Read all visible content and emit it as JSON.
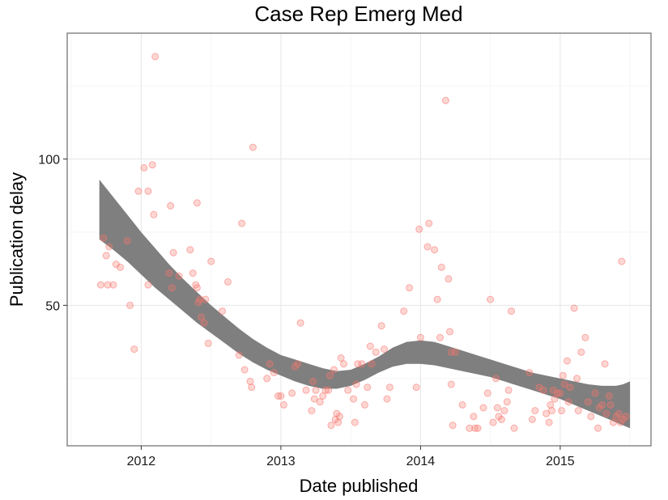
{
  "chart_data": {
    "type": "scatter",
    "title": "Case Rep Emerg Med",
    "xlabel": "Date published",
    "ylabel": "Publication delay",
    "x_ticks": [
      {
        "label": "2012",
        "value": 2012
      },
      {
        "label": "2013",
        "value": 2013
      },
      {
        "label": "2014",
        "value": 2014
      },
      {
        "label": "2015",
        "value": 2015
      }
    ],
    "y_ticks": [
      {
        "label": "50",
        "value": 50
      },
      {
        "label": "100",
        "value": 100
      }
    ],
    "xlim": [
      2011.47,
      2015.65
    ],
    "ylim": [
      2,
      143
    ],
    "grid": true,
    "point_color": "#f8766d",
    "band_color": "#7f7f7f",
    "points": [
      [
        2011.71,
        57
      ],
      [
        2011.73,
        73
      ],
      [
        2011.75,
        67
      ],
      [
        2011.76,
        57
      ],
      [
        2011.77,
        70
      ],
      [
        2011.8,
        57
      ],
      [
        2011.82,
        64
      ],
      [
        2011.85,
        63
      ],
      [
        2011.9,
        72
      ],
      [
        2011.92,
        50
      ],
      [
        2011.95,
        35
      ],
      [
        2011.98,
        89
      ],
      [
        2012.02,
        97
      ],
      [
        2012.05,
        89
      ],
      [
        2012.05,
        57
      ],
      [
        2012.08,
        98
      ],
      [
        2012.09,
        81
      ],
      [
        2012.1,
        135
      ],
      [
        2012.2,
        61
      ],
      [
        2012.21,
        84
      ],
      [
        2012.22,
        56
      ],
      [
        2012.23,
        68
      ],
      [
        2012.27,
        60
      ],
      [
        2012.35,
        69
      ],
      [
        2012.37,
        61
      ],
      [
        2012.39,
        57
      ],
      [
        2012.4,
        85
      ],
      [
        2012.4,
        56
      ],
      [
        2012.41,
        51
      ],
      [
        2012.42,
        52
      ],
      [
        2012.43,
        46
      ],
      [
        2012.45,
        44
      ],
      [
        2012.46,
        52
      ],
      [
        2012.48,
        37
      ],
      [
        2012.5,
        65
      ],
      [
        2012.58,
        48
      ],
      [
        2012.62,
        58
      ],
      [
        2012.7,
        33
      ],
      [
        2012.72,
        78
      ],
      [
        2012.74,
        28
      ],
      [
        2012.78,
        24
      ],
      [
        2012.79,
        22
      ],
      [
        2012.8,
        104
      ],
      [
        2012.9,
        25
      ],
      [
        2012.92,
        30
      ],
      [
        2012.95,
        27
      ],
      [
        2012.98,
        19
      ],
      [
        2013.0,
        19
      ],
      [
        2013.02,
        16
      ],
      [
        2013.08,
        20
      ],
      [
        2013.1,
        29
      ],
      [
        2013.12,
        30
      ],
      [
        2013.14,
        44
      ],
      [
        2013.18,
        21
      ],
      [
        2013.22,
        14
      ],
      [
        2013.23,
        24
      ],
      [
        2013.24,
        18
      ],
      [
        2013.25,
        21
      ],
      [
        2013.28,
        17
      ],
      [
        2013.3,
        19
      ],
      [
        2013.32,
        21
      ],
      [
        2013.34,
        21
      ],
      [
        2013.35,
        26
      ],
      [
        2013.36,
        9
      ],
      [
        2013.38,
        28
      ],
      [
        2013.39,
        11
      ],
      [
        2013.4,
        13
      ],
      [
        2013.41,
        10
      ],
      [
        2013.42,
        12
      ],
      [
        2013.43,
        32
      ],
      [
        2013.45,
        30
      ],
      [
        2013.48,
        21
      ],
      [
        2013.52,
        18
      ],
      [
        2013.53,
        10
      ],
      [
        2013.54,
        23
      ],
      [
        2013.55,
        30
      ],
      [
        2013.58,
        30
      ],
      [
        2013.6,
        16
      ],
      [
        2013.62,
        22
      ],
      [
        2013.64,
        36
      ],
      [
        2013.65,
        30
      ],
      [
        2013.68,
        34
      ],
      [
        2013.72,
        43
      ],
      [
        2013.74,
        35
      ],
      [
        2013.76,
        18
      ],
      [
        2013.78,
        22
      ],
      [
        2013.88,
        48
      ],
      [
        2013.92,
        56
      ],
      [
        2013.97,
        22
      ],
      [
        2013.99,
        76
      ],
      [
        2014.0,
        39
      ],
      [
        2014.05,
        70
      ],
      [
        2014.06,
        78
      ],
      [
        2014.1,
        69
      ],
      [
        2014.12,
        52
      ],
      [
        2014.14,
        39
      ],
      [
        2014.15,
        63
      ],
      [
        2014.18,
        120
      ],
      [
        2014.2,
        59
      ],
      [
        2014.21,
        41
      ],
      [
        2014.22,
        34
      ],
      [
        2014.22,
        23
      ],
      [
        2014.23,
        9
      ],
      [
        2014.25,
        34
      ],
      [
        2014.3,
        16
      ],
      [
        2014.35,
        8
      ],
      [
        2014.38,
        12
      ],
      [
        2014.39,
        8
      ],
      [
        2014.41,
        8
      ],
      [
        2014.45,
        15
      ],
      [
        2014.48,
        20
      ],
      [
        2014.5,
        52
      ],
      [
        2014.52,
        10
      ],
      [
        2014.54,
        25
      ],
      [
        2014.55,
        15
      ],
      [
        2014.56,
        12
      ],
      [
        2014.58,
        11
      ],
      [
        2014.6,
        14
      ],
      [
        2014.62,
        17
      ],
      [
        2014.63,
        21
      ],
      [
        2014.65,
        48
      ],
      [
        2014.67,
        8
      ],
      [
        2014.78,
        27
      ],
      [
        2014.8,
        11
      ],
      [
        2014.82,
        14
      ],
      [
        2014.85,
        22
      ],
      [
        2014.88,
        21
      ],
      [
        2014.9,
        13
      ],
      [
        2014.92,
        10
      ],
      [
        2014.93,
        16
      ],
      [
        2014.94,
        14
      ],
      [
        2014.95,
        21
      ],
      [
        2014.96,
        18
      ],
      [
        2014.98,
        20
      ],
      [
        2015.0,
        20
      ],
      [
        2015.01,
        14
      ],
      [
        2015.02,
        26
      ],
      [
        2015.03,
        23
      ],
      [
        2015.05,
        31
      ],
      [
        2015.06,
        17
      ],
      [
        2015.07,
        22
      ],
      [
        2015.1,
        49
      ],
      [
        2015.12,
        25
      ],
      [
        2015.13,
        14
      ],
      [
        2015.15,
        34
      ],
      [
        2015.18,
        39
      ],
      [
        2015.2,
        17
      ],
      [
        2015.22,
        12
      ],
      [
        2015.25,
        20
      ],
      [
        2015.27,
        8
      ],
      [
        2015.28,
        15
      ],
      [
        2015.3,
        16
      ],
      [
        2015.32,
        30
      ],
      [
        2015.33,
        13
      ],
      [
        2015.35,
        19
      ],
      [
        2015.36,
        16
      ],
      [
        2015.38,
        10
      ],
      [
        2015.4,
        12
      ],
      [
        2015.42,
        13
      ],
      [
        2015.43,
        10
      ],
      [
        2015.44,
        65
      ],
      [
        2015.45,
        11
      ],
      [
        2015.47,
        12
      ]
    ],
    "smooth_band": {
      "x": [
        2011.7,
        2011.8,
        2011.9,
        2012.0,
        2012.1,
        2012.2,
        2012.3,
        2012.4,
        2012.5,
        2012.6,
        2012.7,
        2012.8,
        2012.9,
        2013.0,
        2013.1,
        2013.2,
        2013.3,
        2013.4,
        2013.5,
        2013.6,
        2013.7,
        2013.8,
        2013.9,
        2014.0,
        2014.1,
        2014.2,
        2014.3,
        2014.4,
        2014.5,
        2014.6,
        2014.7,
        2014.8,
        2014.9,
        2015.0,
        2015.1,
        2015.2,
        2015.3,
        2015.35,
        2015.4,
        2015.45,
        2015.5
      ],
      "upper": [
        93,
        87,
        81,
        75,
        69.5,
        64,
        59,
        54.5,
        50,
        46,
        42,
        38.5,
        35.5,
        33,
        31.5,
        30,
        28.5,
        27.5,
        28,
        30,
        32.5,
        35.5,
        37.5,
        38,
        37.5,
        36,
        34.5,
        33,
        31.5,
        30,
        28.5,
        27,
        26,
        25,
        24,
        23,
        22.5,
        22.5,
        22.5,
        23,
        24
      ],
      "lower": [
        72.5,
        69,
        65,
        60.5,
        56,
        52,
        48,
        44,
        40.5,
        37,
        33.5,
        30.5,
        28,
        26,
        24,
        22.5,
        21.5,
        21.5,
        22.5,
        24.5,
        27,
        29,
        30,
        30,
        29.5,
        28.5,
        27.5,
        26.5,
        25.5,
        24,
        22.5,
        21,
        19.5,
        18,
        16,
        14,
        12,
        11,
        10,
        9,
        8
      ]
    }
  }
}
